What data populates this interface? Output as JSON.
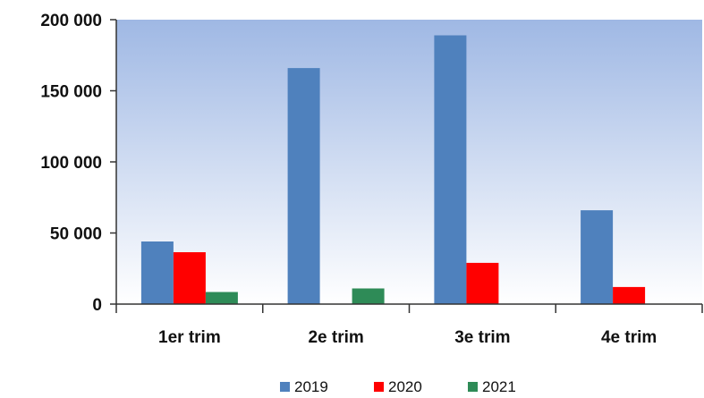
{
  "chart_data": {
    "type": "bar",
    "title": "",
    "xlabel": "",
    "ylabel": "",
    "categories": [
      "1er trim",
      "2e trim",
      "3e trim",
      "4e trim"
    ],
    "series": [
      {
        "name": "2019",
        "color": "#4F81BD",
        "values": [
          44000,
          166000,
          189000,
          66000
        ]
      },
      {
        "name": "2020",
        "color": "#FF0000",
        "values": [
          36500,
          null,
          29000,
          12000
        ]
      },
      {
        "name": "2021",
        "color": "#2E8B57",
        "values": [
          8500,
          11000,
          null,
          null
        ]
      }
    ],
    "ylim": [
      0,
      200000
    ],
    "yticks": [
      0,
      50000,
      100000,
      150000,
      200000
    ],
    "ytick_labels": [
      "0",
      "50 000",
      "100 000",
      "150 000",
      "200 000"
    ],
    "legend_position": "bottom",
    "plot_background": "gradient light-blue to white",
    "grid": false
  }
}
